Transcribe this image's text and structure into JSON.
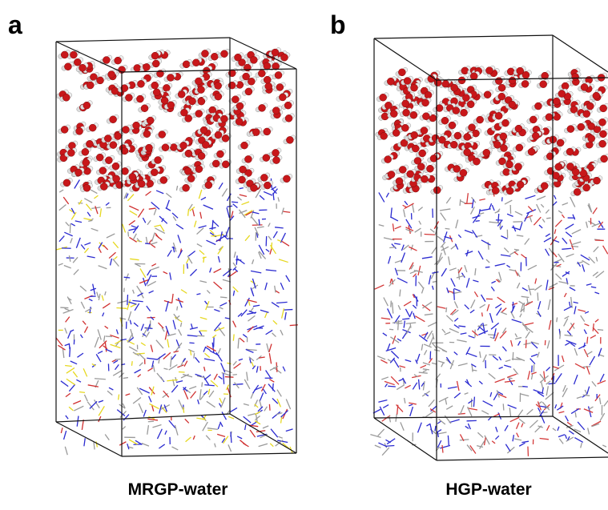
{
  "panels": [
    {
      "label": "a",
      "caption": "MRGP-water"
    },
    {
      "label": "b",
      "caption": "HGP-water"
    }
  ]
}
